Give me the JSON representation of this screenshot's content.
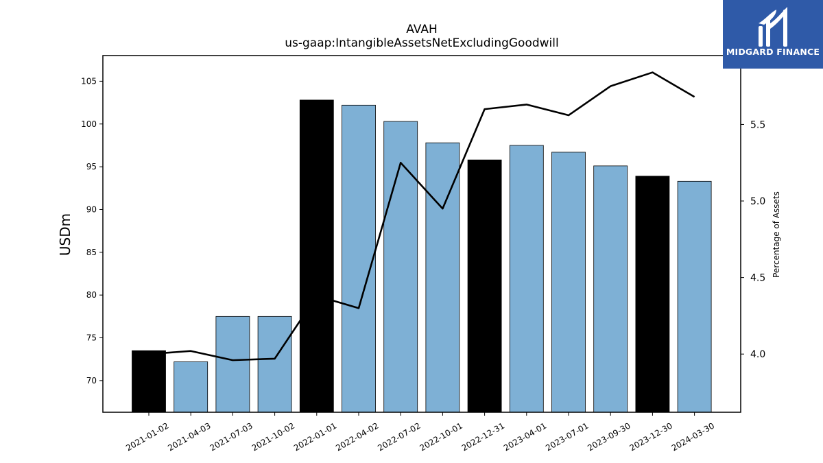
{
  "chart_data": {
    "type": "bar",
    "title": "AVAH",
    "subtitle": "us-gaap:IntangibleAssetsNetExcludingGoodwill",
    "ylabel": "USDm",
    "y2label": "Percentage of Assets",
    "categories": [
      "2021-01-02",
      "2021-04-03",
      "2021-07-03",
      "2021-10-02",
      "2022-01-01",
      "2022-04-02",
      "2022-07-02",
      "2022-10-01",
      "2022-12-31",
      "2023-04-01",
      "2023-07-01",
      "2023-09-30",
      "2023-12-30",
      "2024-03-30"
    ],
    "values": [
      73.5,
      72.2,
      77.5,
      77.5,
      102.8,
      102.2,
      100.3,
      97.8,
      95.8,
      97.5,
      96.7,
      95.1,
      93.9,
      93.3
    ],
    "bar_colors": [
      "#000000",
      "#7eb0d5",
      "#7eb0d5",
      "#7eb0d5",
      "#000000",
      "#7eb0d5",
      "#7eb0d5",
      "#7eb0d5",
      "#000000",
      "#7eb0d5",
      "#7eb0d5",
      "#7eb0d5",
      "#000000",
      "#7eb0d5"
    ],
    "line_values": [
      4.0,
      4.02,
      3.96,
      3.97,
      4.38,
      4.3,
      5.25,
      4.95,
      5.6,
      5.63,
      5.56,
      5.75,
      5.84,
      5.68
    ],
    "ylim": [
      66.3,
      108
    ],
    "y2lim": [
      3.62,
      5.95
    ],
    "yticks": [
      70,
      75,
      80,
      85,
      90,
      95,
      100,
      105
    ],
    "y2ticks": [
      "4.0",
      "4.5",
      "5.0",
      "5.5"
    ],
    "grid": false,
    "colors": {
      "bar": "#7eb0d5",
      "bar_highlight": "#000000",
      "line": "#000000"
    }
  },
  "logo": {
    "name": "MIDGARD FINANCE",
    "background": "#2f5aa8"
  }
}
